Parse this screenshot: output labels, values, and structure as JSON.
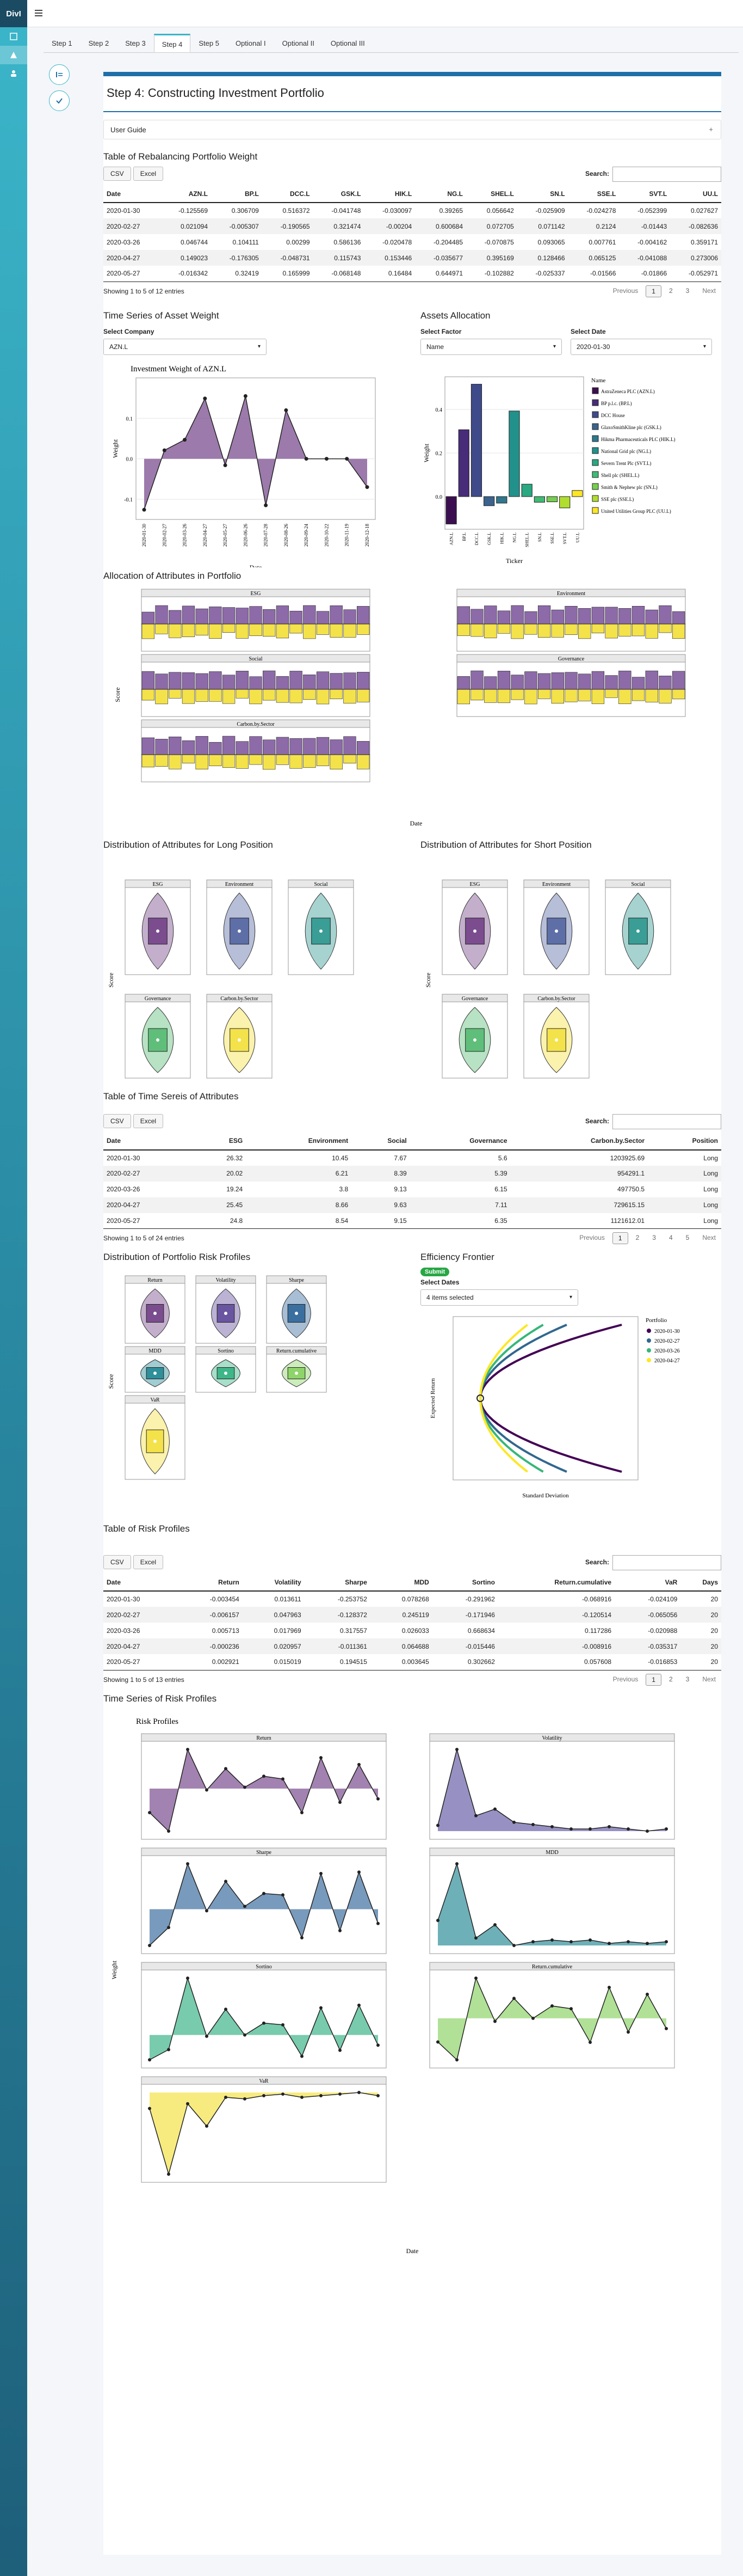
{
  "app": {
    "brand": "DivI"
  },
  "tabs": [
    "Step 1",
    "Step 2",
    "Step 3",
    "Step 4",
    "Step 5",
    "Optional I",
    "Optional II",
    "Optional III"
  ],
  "active_tab": "Step 4",
  "page": {
    "title": "Step 4: Constructing Investment Portfolio",
    "guide": "User Guide"
  },
  "common": {
    "csv": "CSV",
    "excel": "Excel",
    "search": "Search:",
    "prev": "Previous",
    "next": "Next"
  },
  "weights": {
    "title": "Table of Rebalancing Portfolio Weight",
    "columns": [
      "Date",
      "AZN.L",
      "BP.L",
      "DCC.L",
      "GSK.L",
      "HIK.L",
      "NG.L",
      "SHEL.L",
      "SN.L",
      "SSE.L",
      "SVT.L",
      "UU.L"
    ],
    "rows": [
      [
        "2020-01-30",
        "-0.125569",
        "0.306709",
        "0.516372",
        "-0.041748",
        "-0.030097",
        "0.39265",
        "0.056642",
        "-0.025909",
        "-0.024278",
        "-0.052399",
        "0.027627"
      ],
      [
        "2020-02-27",
        "0.021094",
        "-0.005307",
        "-0.190565",
        "0.321474",
        "-0.00204",
        "0.600684",
        "0.072705",
        "0.071142",
        "0.2124",
        "-0.01443",
        "-0.082636"
      ],
      [
        "2020-03-26",
        "0.046744",
        "0.104111",
        "0.00299",
        "0.586136",
        "-0.020478",
        "-0.204485",
        "-0.070875",
        "0.093065",
        "0.007761",
        "-0.004162",
        "0.359171"
      ],
      [
        "2020-04-27",
        "0.149023",
        "-0.176305",
        "-0.048731",
        "0.115743",
        "0.153446",
        "-0.035677",
        "0.395169",
        "0.128466",
        "0.065125",
        "-0.041088",
        "0.273006"
      ],
      [
        "2020-05-27",
        "-0.016342",
        "0.32419",
        "0.165999",
        "-0.068148",
        "0.16484",
        "0.644971",
        "-0.102882",
        "-0.025337",
        "-0.01566",
        "-0.01866",
        "-0.052971"
      ]
    ],
    "info": "Showing 1 to 5 of 12 entries",
    "pages": [
      "1",
      "2",
      "3"
    ]
  },
  "asset_weight": {
    "title": "Time Series of Asset Weight",
    "company_label": "Select Company",
    "company": "AZN.L",
    "plot_title": "Investment Weight of AZN.L",
    "ylabel": "Weight",
    "xlabel": "Date"
  },
  "allocation": {
    "title": "Assets Allocation",
    "factor_label": "Select Factor",
    "factor": "Name",
    "date_label": "Select Date",
    "date": "2020-01-30",
    "xlabel": "Ticker",
    "ylabel": "Weight",
    "legend_title": "Name"
  },
  "attributes": {
    "title": "Allocation of Attributes in Portfolio",
    "panels": [
      "ESG",
      "Environment",
      "Social",
      "Governance",
      "Carbon.by.Sector"
    ],
    "ylabel": "Score",
    "xlabel": "Date"
  },
  "long_dist": {
    "title": "Distribution of Attributes for Long Position",
    "ylabel": "Score"
  },
  "short_dist": {
    "title": "Distribution of Attributes for Short Position",
    "ylabel": "Score"
  },
  "attr_table": {
    "title": "Table of Time Sereis of Attributes",
    "columns": [
      "Date",
      "ESG",
      "Environment",
      "Social",
      "Governance",
      "Carbon.by.Sector",
      "Position"
    ],
    "rows": [
      [
        "2020-01-30",
        "26.32",
        "10.45",
        "7.67",
        "5.6",
        "1203925.69",
        "Long"
      ],
      [
        "2020-02-27",
        "20.02",
        "6.21",
        "8.39",
        "5.39",
        "954291.1",
        "Long"
      ],
      [
        "2020-03-26",
        "19.24",
        "3.8",
        "9.13",
        "6.15",
        "497750.5",
        "Long"
      ],
      [
        "2020-04-27",
        "25.45",
        "8.66",
        "9.63",
        "7.11",
        "729615.15",
        "Long"
      ],
      [
        "2020-05-27",
        "24.8",
        "8.54",
        "9.15",
        "6.35",
        "1121612.01",
        "Long"
      ]
    ],
    "info": "Showing 1 to 5 of 24 entries",
    "pages": [
      "1",
      "2",
      "3",
      "4",
      "5"
    ]
  },
  "risk_dist": {
    "title": "Distribution of Portfolio Risk Profiles",
    "ylabel": "Score",
    "panels": [
      "Return",
      "Volatility",
      "Sharpe",
      "MDD",
      "Sortino",
      "Return.cumulative",
      "VaR"
    ]
  },
  "frontier": {
    "title": "Efficiency Frontier",
    "badge": "Submit",
    "dates_label": "Select Dates",
    "dates_value": "4 items selected",
    "xlabel": "Standard Deviation",
    "ylabel": "Expected Return",
    "legend_title": "Portfolio",
    "legend": [
      "2020-01-30",
      "2020-02-27",
      "2020-03-26",
      "2020-04-27"
    ]
  },
  "risk_table": {
    "title": "Table of Risk Profiles",
    "columns": [
      "Date",
      "Return",
      "Volatility",
      "Sharpe",
      "MDD",
      "Sortino",
      "Return.cumulative",
      "VaR",
      "Days"
    ],
    "rows": [
      [
        "2020-01-30",
        "-0.003454",
        "0.013611",
        "-0.253752",
        "0.078268",
        "-0.291962",
        "-0.068916",
        "-0.024109",
        "20"
      ],
      [
        "2020-02-27",
        "-0.006157",
        "0.047963",
        "-0.128372",
        "0.245119",
        "-0.171946",
        "-0.120514",
        "-0.065056",
        "20"
      ],
      [
        "2020-03-26",
        "0.005713",
        "0.017969",
        "0.317557",
        "0.026033",
        "0.668634",
        "0.117286",
        "-0.020988",
        "20"
      ],
      [
        "2020-04-27",
        "-0.000236",
        "0.020957",
        "-0.011361",
        "0.064688",
        "-0.015446",
        "-0.008916",
        "-0.035317",
        "20"
      ],
      [
        "2020-05-27",
        "0.002921",
        "0.015019",
        "0.194515",
        "0.003645",
        "0.302662",
        "0.057608",
        "-0.016853",
        "20"
      ]
    ],
    "info": "Showing 1 to 5 of 13 entries",
    "pages": [
      "1",
      "2",
      "3"
    ]
  },
  "risk_ts": {
    "title": "Time Series of Risk Profiles",
    "plot_title": "Risk Profiles",
    "ylabel": "Weight",
    "xlabel": "Date",
    "panels": [
      "Return",
      "Volatility",
      "Sharpe",
      "MDD",
      "Sortino",
      "Return.cumulative",
      "VaR"
    ]
  },
  "colors": {
    "accent": "#3bb5c9",
    "primary": "#1f6fa8",
    "purple": "#7b4d8f",
    "yellow": "#f4e24a",
    "teal": "#3a9e96"
  },
  "chart_data": [
    {
      "type": "line",
      "title": "Investment Weight of AZN.L",
      "x": [
        "2020-01-30",
        "2020-02-27",
        "2020-03-26",
        "2020-04-27",
        "2020-05-27",
        "2020-06-26",
        "2020-07-28",
        "2020-08-26",
        "2020-09-24",
        "2020-10-22",
        "2020-11-19",
        "2020-12-18"
      ],
      "values": [
        -0.126,
        0.021,
        0.047,
        0.149,
        -0.016,
        0.155,
        -0.115,
        0.12,
        0.0,
        0.0,
        0.0,
        -0.07
      ],
      "xlabel": "Date",
      "ylabel": "Weight"
    },
    {
      "type": "bar",
      "title": "",
      "categories": [
        "AZN.L",
        "BP.L",
        "DCC.L",
        "GSK.L",
        "HIK.L",
        "NG.L",
        "SHEL.L",
        "SN.L",
        "SSE.L",
        "SVT.L",
        "UU.L"
      ],
      "values": [
        -0.126,
        0.307,
        0.516,
        -0.042,
        -0.03,
        0.393,
        0.057,
        -0.026,
        -0.024,
        -0.052,
        0.028
      ],
      "legend": [
        "AstraZeneca PLC (AZN.L)",
        "BP p.l.c. (BP.L)",
        "DCC House",
        "GlaxoSmithKline plc (GSK.L)",
        "Hikma Pharmaceuticals PLC (HIK.L)",
        "National Grid plc (NG.L)",
        "Severn Trent Plc (SVT.L)",
        "Shell plc (SHEL.L)",
        "Smith & Nephew plc (SN.L)",
        "SSE plc (SSE.L)",
        "United Utilities Group PLC (UU.L)"
      ],
      "xlabel": "Ticker",
      "ylabel": "Weight"
    },
    {
      "type": "line",
      "title": "Risk Profiles",
      "series": [
        {
          "name": "Return",
          "values": [
            -0.0035,
            -0.0062,
            0.0057,
            -0.0002,
            0.0029,
            0.0002,
            0.0018,
            0.0014,
            -0.0035,
            0.0045,
            -0.002,
            0.0035,
            -0.0015
          ]
        },
        {
          "name": "Volatility",
          "values": [
            0.0136,
            0.048,
            0.018,
            0.021,
            0.015,
            0.014,
            0.013,
            0.012,
            0.012,
            0.013,
            0.012,
            0.011,
            0.012
          ]
        },
        {
          "name": "Sharpe",
          "values": [
            -0.254,
            -0.128,
            0.318,
            -0.011,
            0.195,
            0.02,
            0.11,
            0.1,
            -0.2,
            0.25,
            -0.15,
            0.26,
            -0.1
          ]
        },
        {
          "name": "MDD",
          "values": [
            0.078,
            0.245,
            0.026,
            0.065,
            0.004,
            0.015,
            0.02,
            0.015,
            0.02,
            0.01,
            0.015,
            0.01,
            0.015
          ]
        },
        {
          "name": "Sortino",
          "values": [
            -0.292,
            -0.172,
            0.669,
            -0.015,
            0.303,
            0.0,
            0.14,
            0.12,
            -0.25,
            0.32,
            -0.18,
            0.35,
            -0.12
          ]
        },
        {
          "name": "Return.cumulative",
          "values": [
            -0.069,
            -0.121,
            0.117,
            -0.009,
            0.058,
            0.0,
            0.036,
            0.028,
            -0.07,
            0.09,
            -0.04,
            0.07,
            -0.03
          ]
        },
        {
          "name": "VaR",
          "values": [
            -0.024,
            -0.065,
            -0.021,
            -0.035,
            -0.017,
            -0.018,
            -0.016,
            -0.015,
            -0.017,
            -0.016,
            -0.015,
            -0.014,
            -0.016
          ]
        }
      ]
    }
  ]
}
